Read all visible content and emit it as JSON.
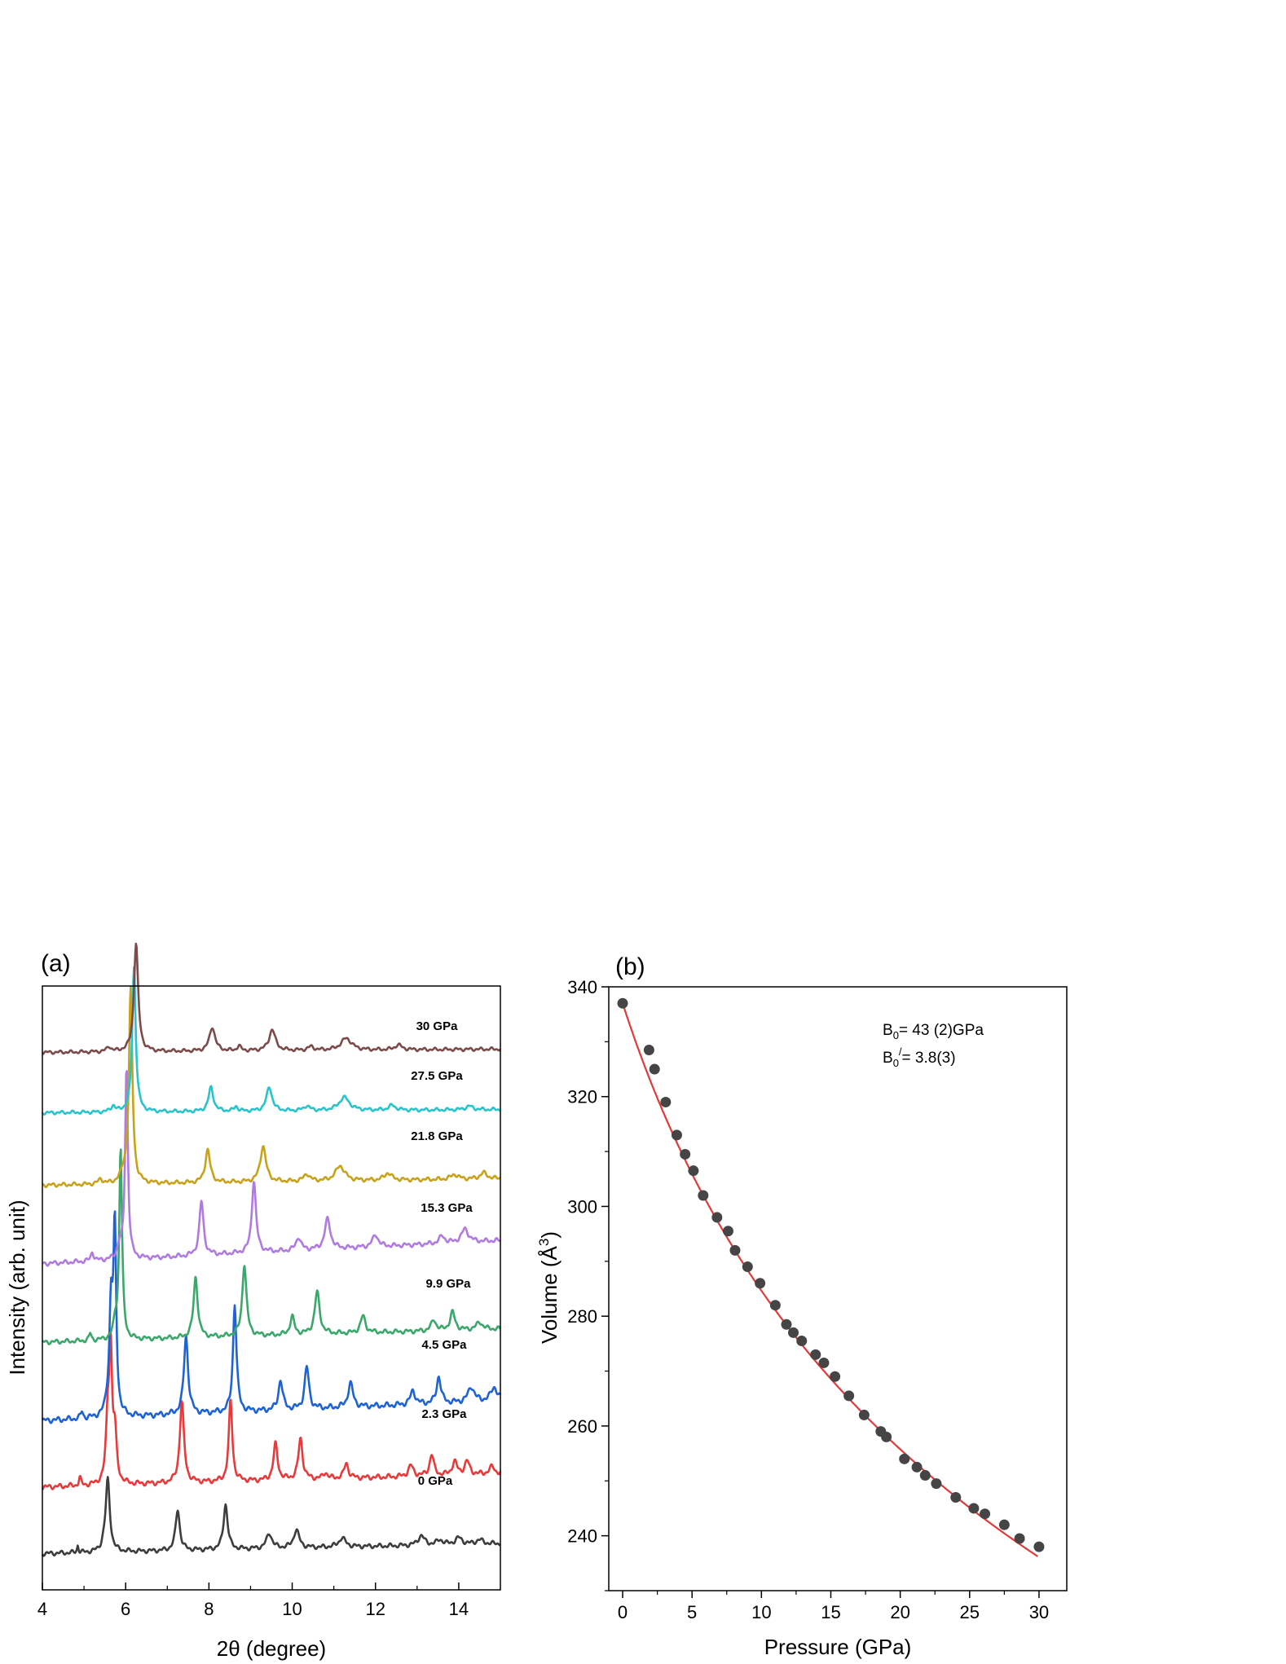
{
  "chart_data": [
    {
      "type": "line",
      "panel_label": "(a)",
      "xlabel": "2θ (degree)",
      "ylabel": "Intensity (arb. unit)",
      "xlim": [
        4,
        15
      ],
      "xticks": [
        4,
        6,
        8,
        10,
        12,
        14
      ],
      "ylim": [
        0,
        100
      ],
      "grid": false,
      "series": [
        {
          "name": "0 GPa",
          "color": "#3d3d3d",
          "offset": 5,
          "baseline": 1.0,
          "slope": 0.15,
          "noise": 0.4,
          "trace_label": "0 GPa",
          "peaks": [
            [
              4.85,
              1.2,
              0.02
            ],
            [
              5.47,
              0.7,
              0.05
            ],
            [
              5.57,
              12,
              0.06
            ],
            [
              7.25,
              6.8,
              0.06
            ],
            [
              8.4,
              7.5,
              0.06
            ],
            [
              9.45,
              2.5,
              0.08
            ],
            [
              10.1,
              3.0,
              0.08
            ],
            [
              11.2,
              1.5,
              0.1
            ],
            [
              13.1,
              1.6,
              0.09
            ],
            [
              13.55,
              0.8,
              0.09
            ],
            [
              14.0,
              1.1,
              0.1
            ],
            [
              14.5,
              0.7,
              0.1
            ]
          ]
        },
        {
          "name": "2.3 GPa",
          "color": "#e83a3a",
          "offset": 16,
          "baseline": 1.0,
          "slope": 0.2,
          "noise": 0.45,
          "trace_label": "2.3 GPa",
          "peaks": [
            [
              4.9,
              1.3,
              0.03
            ],
            [
              5.57,
              10,
              0.05
            ],
            [
              5.64,
              21,
              0.04
            ],
            [
              5.74,
              8,
              0.05
            ],
            [
              7.35,
              13.5,
              0.06
            ],
            [
              8.52,
              13.5,
              0.05
            ],
            [
              9.6,
              6.0,
              0.06
            ],
            [
              10.2,
              6.8,
              0.06
            ],
            [
              10.8,
              1.0,
              0.06
            ],
            [
              11.3,
              2.5,
              0.06
            ],
            [
              12.85,
              1.8,
              0.07
            ],
            [
              13.35,
              3.5,
              0.06
            ],
            [
              13.9,
              2.2,
              0.07
            ],
            [
              14.2,
              2.2,
              0.07
            ],
            [
              14.8,
              1.2,
              0.08
            ]
          ]
        },
        {
          "name": "4.5 GPa",
          "color": "#1e63d6",
          "offset": 27,
          "baseline": 1.0,
          "slope": 0.3,
          "noise": 0.5,
          "trace_label": "4.5 GPa",
          "peaks": [
            [
              4.95,
              1.2,
              0.03
            ],
            [
              5.55,
              1.0,
              0.05
            ],
            [
              5.65,
              18,
              0.05
            ],
            [
              5.74,
              30,
              0.04
            ],
            [
              7.45,
              13,
              0.06
            ],
            [
              8.62,
              18,
              0.05
            ],
            [
              9.72,
              5,
              0.06
            ],
            [
              10.35,
              7,
              0.06
            ],
            [
              11.4,
              4,
              0.07
            ],
            [
              12.9,
              2.3,
              0.07
            ],
            [
              13.52,
              4.5,
              0.06
            ],
            [
              14.3,
              2.5,
              0.09
            ],
            [
              14.85,
              2.3,
              0.09
            ]
          ]
        },
        {
          "name": "9.9 GPa",
          "color": "#3aa86b",
          "offset": 40,
          "baseline": 1.0,
          "slope": 0.2,
          "noise": 0.4,
          "trace_label": "9.9 GPa",
          "peaks": [
            [
              5.15,
              1.2,
              0.03
            ],
            [
              5.75,
              2.5,
              0.05
            ],
            [
              5.88,
              32,
              0.04
            ],
            [
              7.68,
              10,
              0.06
            ],
            [
              8.85,
              12,
              0.06
            ],
            [
              10.0,
              3,
              0.06
            ],
            [
              10.6,
              7,
              0.07
            ],
            [
              11.7,
              2.8,
              0.07
            ],
            [
              13.4,
              1.8,
              0.07
            ],
            [
              13.85,
              3.0,
              0.07
            ],
            [
              14.5,
              1.2,
              0.09
            ]
          ]
        },
        {
          "name": "15.3 GPa",
          "color": "#b07be0",
          "offset": 53,
          "baseline": 1.0,
          "slope": 0.35,
          "noise": 0.4,
          "trace_label": "15.3 GPa",
          "peaks": [
            [
              5.2,
              1.5,
              0.04
            ],
            [
              5.85,
              2.0,
              0.06
            ],
            [
              6.02,
              32,
              0.04
            ],
            [
              7.82,
              9,
              0.06
            ],
            [
              9.08,
              12,
              0.06
            ],
            [
              10.15,
              2.2,
              0.07
            ],
            [
              10.85,
              5,
              0.08
            ],
            [
              12.0,
              2,
              0.08
            ],
            [
              13.6,
              1.2,
              0.08
            ],
            [
              14.15,
              2.2,
              0.1
            ]
          ]
        },
        {
          "name": "21.8 GPa",
          "color": "#c9a21a",
          "offset": 66,
          "baseline": 1.0,
          "slope": 0.1,
          "noise": 0.35,
          "trace_label": "21.8 GPa",
          "peaks": [
            [
              5.4,
              0.8,
              0.06
            ],
            [
              5.95,
              1.5,
              0.08
            ],
            [
              6.12,
              32,
              0.05
            ],
            [
              7.97,
              5.5,
              0.07
            ],
            [
              9.3,
              6.0,
              0.08
            ],
            [
              10.35,
              1.2,
              0.08
            ],
            [
              11.15,
              2.5,
              0.13
            ],
            [
              12.3,
              1.2,
              0.1
            ],
            [
              13.9,
              0.8,
              0.1
            ],
            [
              14.6,
              1.0,
              0.1
            ]
          ]
        },
        {
          "name": "27.5 GPa",
          "color": "#28c4cc",
          "offset": 78,
          "baseline": 1.0,
          "slope": 0.05,
          "noise": 0.3,
          "trace_label": "27.5 GPa",
          "peaks": [
            [
              5.7,
              1.0,
              0.06
            ],
            [
              6.2,
              24,
              0.05
            ],
            [
              8.05,
              4.0,
              0.07
            ],
            [
              8.65,
              0.8,
              0.05
            ],
            [
              9.45,
              4.0,
              0.08
            ],
            [
              10.35,
              0.8,
              0.08
            ],
            [
              11.25,
              2.2,
              0.15
            ],
            [
              12.4,
              0.8,
              0.1
            ],
            [
              14.25,
              0.6,
              0.1
            ]
          ]
        },
        {
          "name": "30 GPa",
          "color": "#7d4a4a",
          "offset": 88,
          "baseline": 1.0,
          "slope": 0.05,
          "noise": 0.3,
          "trace_label": "30 GPa",
          "peaks": [
            [
              5.6,
              0.8,
              0.06
            ],
            [
              6.25,
              18,
              0.06
            ],
            [
              8.08,
              4.0,
              0.08
            ],
            [
              8.72,
              0.8,
              0.05
            ],
            [
              9.52,
              3.5,
              0.09
            ],
            [
              10.45,
              0.6,
              0.08
            ],
            [
              11.3,
              2.0,
              0.15
            ],
            [
              12.55,
              0.8,
              0.1
            ]
          ]
        }
      ]
    },
    {
      "type": "scatter",
      "panel_label": "(b)",
      "xlabel": "Pressure (GPa)",
      "ylabel_main": "Volume (",
      "ylabel_unit": "Å",
      "ylabel_sup": "3",
      "ylabel_close": ")",
      "xlim": [
        -1,
        32
      ],
      "ylim": [
        230,
        340
      ],
      "xticks": [
        0,
        5,
        10,
        15,
        20,
        25,
        30
      ],
      "yticks": [
        240,
        260,
        280,
        300,
        320,
        340
      ],
      "grid": false,
      "annotation": {
        "line1_main": "B",
        "line1_sub": "0",
        "line1_rest": "= 43 (2)GPa",
        "line2_main": "B",
        "line2_sub": "0",
        "line2_sup": "/",
        "line2_rest": "= 3.8(3)"
      },
      "points": {
        "x": [
          0,
          1.9,
          2.3,
          3.1,
          3.9,
          4.5,
          5.1,
          5.8,
          6.8,
          7.6,
          8.1,
          9.0,
          9.9,
          11.0,
          11.8,
          12.3,
          12.9,
          13.9,
          14.5,
          15.3,
          16.3,
          17.4,
          18.6,
          19.0,
          20.3,
          21.2,
          21.8,
          22.6,
          24.0,
          25.3,
          26.1,
          27.5,
          28.6,
          30.0
        ],
        "y": [
          337,
          328.5,
          325,
          319,
          313,
          309.5,
          306.5,
          302,
          298,
          295.5,
          292,
          289,
          286,
          282,
          278.5,
          277,
          275.5,
          273,
          271.5,
          269,
          265.5,
          262,
          259,
          258,
          254,
          252.5,
          251,
          249.5,
          247,
          245,
          244,
          242,
          239.5,
          238
        ],
        "color": "#454545"
      },
      "fit": {
        "type": "Birch-Murnaghan EOS",
        "V0": 337,
        "B0": 43,
        "B0prime": 3.8,
        "color": "#e23a3a"
      }
    }
  ]
}
